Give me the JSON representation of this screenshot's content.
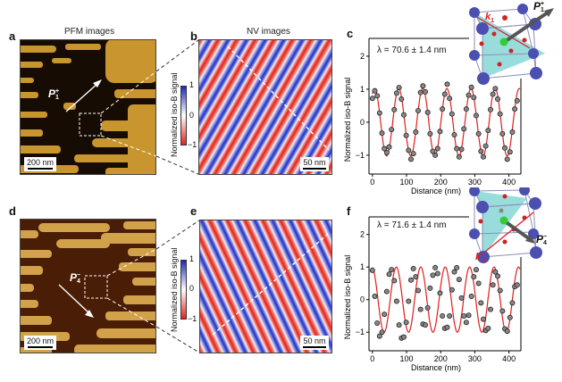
{
  "panels": {
    "a": {
      "label": "a",
      "title": "PFM images",
      "scale_bar": "200 nm",
      "polarization": "P",
      "pol_sup": "+",
      "pol_sub": "1"
    },
    "b": {
      "label": "b",
      "title": "NV images",
      "scale_bar": "50 nm"
    },
    "c": {
      "label": "c",
      "annotation": "λ = 70.6 ± 1.4 nm",
      "k_label": "k",
      "k_sub": "1",
      "polarization": "P",
      "pol_sup": "+",
      "pol_sub": "1"
    },
    "d": {
      "label": "d",
      "scale_bar": "200 nm",
      "polarization": "P",
      "pol_sup": "−",
      "pol_sub": "4"
    },
    "e": {
      "label": "e",
      "scale_bar": "50 nm"
    },
    "f": {
      "label": "f",
      "annotation": "λ = 71.6 ± 1.4 nm",
      "k_label": "k′",
      "k_sub": "1",
      "polarization": "P",
      "pol_sup": "−",
      "pol_sub": "4"
    }
  },
  "colorbar": {
    "label": "Normalized iso-B signal",
    "ticks": [
      "1",
      "0",
      "−1"
    ],
    "colors": {
      "high": "#1b28b8",
      "mid": "#ffffff",
      "low": "#e2231d"
    }
  },
  "chart_data": [
    {
      "type": "scatter",
      "panel": "c",
      "xlabel": "Distance (nm)",
      "ylabel": "Normalized iso-B signal",
      "xlim": [
        -10,
        435
      ],
      "ylim": [
        -1.57,
        2.54
      ],
      "xticks": [
        0,
        100,
        200,
        300,
        400
      ],
      "yticks": [
        -1,
        0,
        1,
        2
      ],
      "x": [
        0,
        7,
        14,
        21,
        28,
        35,
        42,
        49,
        56,
        64,
        71,
        78,
        85,
        92,
        99,
        106,
        113,
        120,
        127,
        134,
        141,
        148,
        155,
        162,
        169,
        177,
        184,
        191,
        198,
        205,
        212,
        219,
        226,
        233,
        240,
        247,
        254,
        261,
        268,
        275,
        282,
        290,
        297,
        304,
        311,
        318,
        325,
        332,
        339,
        346,
        353,
        360,
        367,
        374,
        381,
        388,
        395,
        403,
        410,
        417,
        424
      ],
      "y": [
        0.72,
        0.95,
        0.8,
        0.28,
        -0.33,
        -0.8,
        -0.92,
        -0.75,
        -0.22,
        0.38,
        0.88,
        1.05,
        0.7,
        0.22,
        -0.4,
        -0.85,
        -1.12,
        -0.95,
        -0.3,
        0.35,
        0.9,
        1.1,
        0.92,
        0.3,
        -0.35,
        -0.88,
        -1.0,
        -0.8,
        -0.28,
        0.4,
        0.85,
        1.15,
        0.72,
        0.25,
        -0.38,
        -0.8,
        -1.05,
        -0.82,
        -0.2,
        0.4,
        0.82,
        1.06,
        0.75,
        0.2,
        -0.35,
        -0.88,
        -1.05,
        -0.72,
        -0.25,
        0.38,
        0.85,
        1.02,
        0.7,
        0.25,
        -0.35,
        -0.78,
        -1.12,
        -0.9,
        -0.3,
        0.4,
        0.65
      ],
      "fit": {
        "wavelength_nm": 70.6,
        "amplitude": 1.02,
        "peak_nm": 77,
        "color": "#e01e1e"
      },
      "point_color": "#888888"
    },
    {
      "type": "scatter",
      "panel": "f",
      "xlabel": "Distance (nm)",
      "ylabel": "Normalized iso-B signal",
      "xlim": [
        -10,
        435
      ],
      "ylim": [
        -1.57,
        2.54
      ],
      "xticks": [
        0,
        100,
        200,
        300,
        400
      ],
      "yticks": [
        -1,
        0,
        1,
        2
      ],
      "x": [
        0,
        7,
        14,
        21,
        28,
        35,
        42,
        49,
        56,
        64,
        71,
        78,
        85,
        92,
        99,
        106,
        113,
        120,
        127,
        134,
        141,
        148,
        155,
        162,
        169,
        177,
        184,
        191,
        198,
        205,
        212,
        219,
        226,
        233,
        240,
        247,
        254,
        261,
        268,
        275,
        282,
        290,
        297,
        304,
        311,
        318,
        325,
        332,
        339,
        346,
        353,
        360,
        367,
        374,
        381,
        388,
        395,
        403,
        410,
        417,
        424
      ],
      "y": [
        0.9,
        0.1,
        -0.72,
        -1.12,
        -1.0,
        -0.45,
        0.25,
        0.78,
        0.92,
        0.58,
        -0.05,
        -0.78,
        -1.18,
        -1.15,
        -0.7,
        -0.05,
        0.6,
        0.95,
        0.7,
        0.28,
        -0.3,
        -0.75,
        -0.78,
        -0.25,
        0.35,
        0.75,
        0.98,
        0.8,
        0.2,
        -0.5,
        -0.88,
        -0.85,
        -0.5,
        0.3,
        0.85,
        0.98,
        0.62,
        0.05,
        -0.5,
        -0.7,
        -0.48,
        0.1,
        0.7,
        0.92,
        0.5,
        -0.1,
        -0.6,
        -0.95,
        -0.88,
        -0.3,
        0.45,
        0.85,
        0.72,
        0.28,
        -0.35,
        -0.9,
        -0.97,
        -0.55,
        -0.1,
        0.4,
        0.45
      ],
      "fit": {
        "wavelength_nm": 71.6,
        "amplitude": 1.0,
        "peak_nm": 70,
        "color": "#e01e1e"
      },
      "point_color": "#888888"
    }
  ]
}
